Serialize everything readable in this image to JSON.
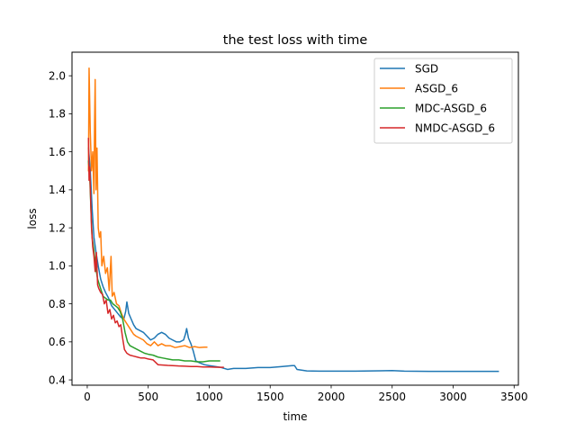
{
  "chart_data": {
    "type": "line",
    "title": "the test loss with time",
    "xlabel": "time",
    "ylabel": "loss",
    "xlim": [
      -125,
      3535
    ],
    "ylim": [
      0.372,
      2.124
    ],
    "xticks": [
      "0",
      "500",
      "1000",
      "1500",
      "2000",
      "2500",
      "3000",
      "3500"
    ],
    "yticks": [
      "0.4",
      "0.6",
      "0.8",
      "1.0",
      "1.2",
      "1.4",
      "1.6",
      "1.8",
      "2.0"
    ],
    "legend_position": "top-right",
    "grid": false,
    "series": [
      {
        "name": "SGD",
        "color": "#1f77b4",
        "points": [
          [
            10,
            1.62
          ],
          [
            25,
            1.5
          ],
          [
            40,
            1.3
          ],
          [
            55,
            1.15
          ],
          [
            70,
            1.08
          ],
          [
            90,
            1.0
          ],
          [
            110,
            0.93
          ],
          [
            130,
            0.89
          ],
          [
            150,
            0.86
          ],
          [
            175,
            0.83
          ],
          [
            200,
            0.79
          ],
          [
            225,
            0.77
          ],
          [
            250,
            0.75
          ],
          [
            275,
            0.73
          ],
          [
            300,
            0.72
          ],
          [
            315,
            0.76
          ],
          [
            325,
            0.81
          ],
          [
            340,
            0.75
          ],
          [
            360,
            0.72
          ],
          [
            380,
            0.69
          ],
          [
            400,
            0.67
          ],
          [
            430,
            0.66
          ],
          [
            460,
            0.65
          ],
          [
            490,
            0.63
          ],
          [
            520,
            0.61
          ],
          [
            550,
            0.62
          ],
          [
            580,
            0.64
          ],
          [
            610,
            0.65
          ],
          [
            640,
            0.64
          ],
          [
            670,
            0.62
          ],
          [
            700,
            0.61
          ],
          [
            730,
            0.6
          ],
          [
            760,
            0.6
          ],
          [
            790,
            0.61
          ],
          [
            805,
            0.64
          ],
          [
            815,
            0.67
          ],
          [
            830,
            0.62
          ],
          [
            850,
            0.59
          ],
          [
            870,
            0.55
          ],
          [
            890,
            0.5
          ],
          [
            920,
            0.49
          ],
          [
            960,
            0.48
          ],
          [
            1000,
            0.475
          ],
          [
            1050,
            0.47
          ],
          [
            1100,
            0.465
          ],
          [
            1150,
            0.455
          ],
          [
            1200,
            0.46
          ],
          [
            1300,
            0.46
          ],
          [
            1400,
            0.465
          ],
          [
            1500,
            0.465
          ],
          [
            1600,
            0.47
          ],
          [
            1680,
            0.475
          ],
          [
            1700,
            0.475
          ],
          [
            1720,
            0.455
          ],
          [
            1800,
            0.447
          ],
          [
            1900,
            0.446
          ],
          [
            2000,
            0.446
          ],
          [
            2200,
            0.446
          ],
          [
            2400,
            0.448
          ],
          [
            2500,
            0.449
          ],
          [
            2600,
            0.446
          ],
          [
            2800,
            0.445
          ],
          [
            3000,
            0.445
          ],
          [
            3200,
            0.445
          ],
          [
            3370,
            0.445
          ]
        ]
      },
      {
        "name": "ASGD_6",
        "color": "#ff7f0e",
        "points": [
          [
            10,
            1.5
          ],
          [
            15,
            2.04
          ],
          [
            25,
            1.7
          ],
          [
            35,
            1.5
          ],
          [
            45,
            1.6
          ],
          [
            55,
            1.38
          ],
          [
            60,
            1.75
          ],
          [
            65,
            1.98
          ],
          [
            72,
            1.4
          ],
          [
            80,
            1.62
          ],
          [
            90,
            1.2
          ],
          [
            100,
            1.15
          ],
          [
            110,
            1.18
          ],
          [
            120,
            1.0
          ],
          [
            135,
            1.05
          ],
          [
            150,
            0.96
          ],
          [
            165,
            0.99
          ],
          [
            180,
            0.87
          ],
          [
            195,
            1.05
          ],
          [
            205,
            0.84
          ],
          [
            220,
            0.86
          ],
          [
            240,
            0.8
          ],
          [
            260,
            0.79
          ],
          [
            280,
            0.75
          ],
          [
            300,
            0.72
          ],
          [
            320,
            0.7
          ],
          [
            340,
            0.68
          ],
          [
            360,
            0.66
          ],
          [
            380,
            0.64
          ],
          [
            400,
            0.63
          ],
          [
            430,
            0.62
          ],
          [
            460,
            0.61
          ],
          [
            490,
            0.59
          ],
          [
            520,
            0.58
          ],
          [
            550,
            0.6
          ],
          [
            580,
            0.58
          ],
          [
            610,
            0.59
          ],
          [
            640,
            0.58
          ],
          [
            680,
            0.58
          ],
          [
            720,
            0.57
          ],
          [
            760,
            0.575
          ],
          [
            800,
            0.58
          ],
          [
            840,
            0.57
          ],
          [
            880,
            0.575
          ],
          [
            920,
            0.57
          ],
          [
            960,
            0.572
          ],
          [
            980,
            0.572
          ]
        ]
      },
      {
        "name": "MDC-ASGD_6",
        "color": "#2ca02c",
        "points": [
          [
            10,
            1.55
          ],
          [
            20,
            1.48
          ],
          [
            30,
            1.3
          ],
          [
            40,
            1.15
          ],
          [
            55,
            1.08
          ],
          [
            70,
            0.99
          ],
          [
            85,
            0.93
          ],
          [
            100,
            0.9
          ],
          [
            115,
            0.87
          ],
          [
            130,
            0.84
          ],
          [
            150,
            0.83
          ],
          [
            170,
            0.82
          ],
          [
            190,
            0.82
          ],
          [
            210,
            0.8
          ],
          [
            230,
            0.79
          ],
          [
            250,
            0.78
          ],
          [
            270,
            0.76
          ],
          [
            290,
            0.72
          ],
          [
            310,
            0.65
          ],
          [
            330,
            0.6
          ],
          [
            350,
            0.58
          ],
          [
            380,
            0.57
          ],
          [
            410,
            0.56
          ],
          [
            440,
            0.55
          ],
          [
            470,
            0.54
          ],
          [
            500,
            0.535
          ],
          [
            540,
            0.53
          ],
          [
            580,
            0.52
          ],
          [
            620,
            0.515
          ],
          [
            660,
            0.51
          ],
          [
            700,
            0.505
          ],
          [
            750,
            0.505
          ],
          [
            800,
            0.5
          ],
          [
            850,
            0.5
          ],
          [
            900,
            0.495
          ],
          [
            950,
            0.495
          ],
          [
            1000,
            0.5
          ],
          [
            1050,
            0.5
          ],
          [
            1085,
            0.5
          ]
        ]
      },
      {
        "name": "NMDC-ASGD_6",
        "color": "#d62728",
        "points": [
          [
            10,
            1.67
          ],
          [
            15,
            1.45
          ],
          [
            20,
            1.52
          ],
          [
            28,
            1.35
          ],
          [
            35,
            1.2
          ],
          [
            45,
            1.1
          ],
          [
            55,
            1.05
          ],
          [
            65,
            0.97
          ],
          [
            75,
            1.07
          ],
          [
            85,
            0.9
          ],
          [
            95,
            0.88
          ],
          [
            110,
            0.86
          ],
          [
            125,
            0.85
          ],
          [
            140,
            0.8
          ],
          [
            155,
            0.82
          ],
          [
            170,
            0.75
          ],
          [
            185,
            0.77
          ],
          [
            200,
            0.72
          ],
          [
            215,
            0.74
          ],
          [
            230,
            0.7
          ],
          [
            245,
            0.71
          ],
          [
            260,
            0.68
          ],
          [
            275,
            0.69
          ],
          [
            290,
            0.62
          ],
          [
            305,
            0.56
          ],
          [
            325,
            0.54
          ],
          [
            350,
            0.53
          ],
          [
            380,
            0.525
          ],
          [
            410,
            0.52
          ],
          [
            440,
            0.515
          ],
          [
            470,
            0.515
          ],
          [
            500,
            0.51
          ],
          [
            540,
            0.505
          ],
          [
            580,
            0.48
          ],
          [
            620,
            0.478
          ],
          [
            660,
            0.476
          ],
          [
            700,
            0.475
          ],
          [
            750,
            0.473
          ],
          [
            800,
            0.472
          ],
          [
            850,
            0.47
          ],
          [
            900,
            0.47
          ],
          [
            950,
            0.468
          ],
          [
            1000,
            0.468
          ],
          [
            1050,
            0.467
          ],
          [
            1100,
            0.466
          ],
          [
            1115,
            0.466
          ]
        ]
      }
    ]
  }
}
